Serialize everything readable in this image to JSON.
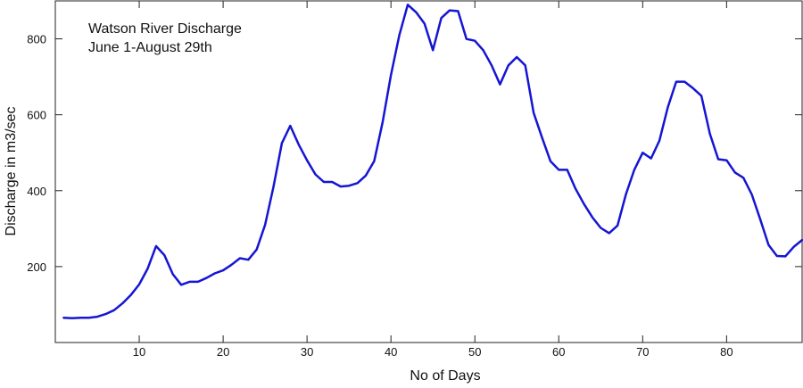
{
  "chart_data": {
    "type": "line",
    "title": "Watson River Discharge",
    "subtitle": "June 1-August 29th",
    "xlabel": "No of Days",
    "ylabel": "Discharge in m3/sec",
    "xlim": [
      0,
      89
    ],
    "ylim": [
      0,
      900
    ],
    "xticks": [
      10,
      20,
      30,
      40,
      50,
      60,
      70,
      80
    ],
    "yticks": [
      200,
      400,
      600,
      800
    ],
    "grid": false,
    "legend": "none",
    "line_color": "#1515d4",
    "series": [
      {
        "x": [
          1,
          2,
          3,
          4,
          5,
          6,
          7,
          8,
          9,
          10,
          11,
          12,
          13,
          14,
          15,
          16,
          17,
          18,
          19,
          20,
          21,
          22,
          23,
          24,
          25,
          26,
          27,
          28,
          29,
          30,
          31,
          32,
          33,
          34,
          35,
          36,
          37,
          38,
          39,
          40,
          41,
          42,
          43,
          44,
          45,
          46,
          47,
          48,
          49,
          50,
          51,
          52,
          53,
          54,
          55,
          56,
          57,
          58,
          59,
          60,
          61,
          62,
          63,
          64,
          65,
          66,
          67,
          68,
          69,
          70,
          71,
          72,
          73,
          74,
          75,
          76,
          77,
          78,
          79,
          80,
          81,
          82,
          83,
          84,
          85,
          86,
          87,
          88,
          89
        ],
        "values": [
          65,
          64,
          65,
          65,
          68,
          75,
          85,
          103,
          125,
          153,
          194,
          254,
          230,
          180,
          152,
          160,
          160,
          170,
          182,
          190,
          205,
          222,
          218,
          245,
          310,
          410,
          525,
          571,
          522,
          480,
          443,
          423,
          423,
          411,
          413,
          420,
          440,
          478,
          580,
          705,
          810,
          890,
          870,
          840,
          770,
          855,
          875,
          873,
          800,
          795,
          770,
          730,
          680,
          730,
          752,
          730,
          605,
          540,
          478,
          455,
          455,
          405,
          365,
          330,
          302,
          288,
          308,
          390,
          455,
          500,
          485,
          532,
          620,
          687,
          687,
          670,
          650,
          550,
          483,
          480,
          448,
          434,
          390,
          325,
          257,
          228,
          227,
          252,
          270
        ]
      }
    ]
  }
}
